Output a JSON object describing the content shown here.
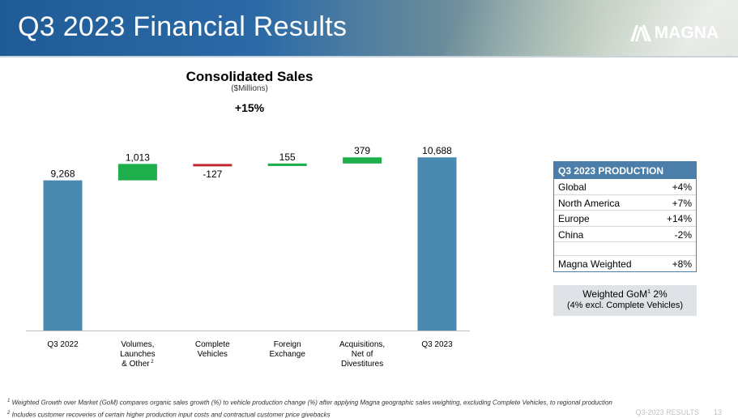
{
  "header": {
    "title": "Q3 2023 Financial Results",
    "logo_text": "MAGNA",
    "logo_icon": "magna-a-logo-icon"
  },
  "chart_data": {
    "type": "waterfall",
    "title": "Consolidated Sales",
    "subtitle": "($Millions)",
    "annotation": "+15%",
    "ylim": [
      0,
      11400
    ],
    "categories": [
      {
        "label": [
          "Q3 2022"
        ],
        "value": 9268,
        "display": "9,268",
        "kind": "total"
      },
      {
        "label": [
          "Volumes,",
          "Launches",
          "& Other"
        ],
        "sup": "2",
        "value": 1013,
        "display": "1,013",
        "kind": "increase"
      },
      {
        "label": [
          "Complete",
          "Vehicles"
        ],
        "value": -127,
        "display": "-127",
        "kind": "decrease"
      },
      {
        "label": [
          "Foreign",
          "Exchange"
        ],
        "value": 155,
        "display": "155",
        "kind": "increase"
      },
      {
        "label": [
          "Acquisitions,",
          "Net of",
          "Divestitures"
        ],
        "value": 379,
        "display": "379",
        "kind": "increase"
      },
      {
        "label": [
          "Q3 2023"
        ],
        "value": 10688,
        "display": "10,688",
        "kind": "total"
      }
    ],
    "colors": {
      "total": "#4a89b0",
      "increase": "#1fae4c",
      "decrease": "#c0282e"
    }
  },
  "production": {
    "title": "Q3 2023 PRODUCTION",
    "rows": [
      {
        "label": "Global",
        "value": "+4%"
      },
      {
        "label": "North America",
        "value": "+7%"
      },
      {
        "label": "Europe",
        "value": "+14%"
      },
      {
        "label": "China",
        "value": "-2%"
      }
    ],
    "weighted": {
      "label": "Magna Weighted",
      "value": "+8%"
    }
  },
  "gom": {
    "line1_prefix": "Weighted GoM",
    "line1_sup": "1",
    "line1_suffix": " 2%",
    "line2": "(4% excl. Complete Vehicles)"
  },
  "footnotes": [
    {
      "sup": "1",
      "text": " Weighted Growth over Market (GoM) compares organic sales growth (%) to vehicle production change (%) after applying Magna geographic sales weighting, excluding Complete Vehicles, to regional production"
    },
    {
      "sup": "2",
      "text": " Includes customer recoveries of certain higher production input costs and contractual customer price givebacks"
    }
  ],
  "slide_footer": {
    "label": "Q3-2023 RESULTS",
    "page": "13"
  }
}
